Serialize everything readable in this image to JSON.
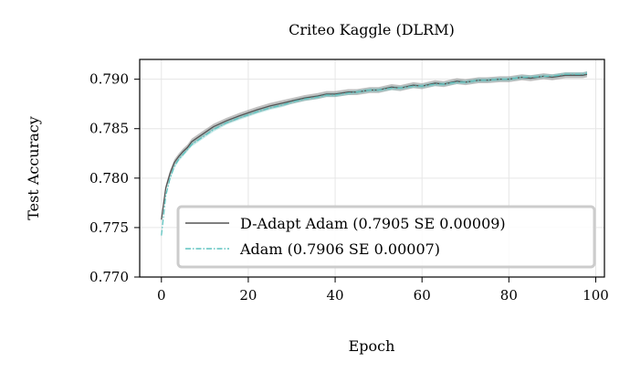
{
  "chart_data": {
    "type": "line",
    "title": "Criteo Kaggle (DLRM)",
    "xlabel": "Epoch",
    "ylabel": "Test Accuracy",
    "xlim": [
      -5,
      102
    ],
    "ylim": [
      0.77,
      0.792
    ],
    "xticks": [
      0,
      20,
      40,
      60,
      80,
      100
    ],
    "xtick_labels": [
      "0",
      "20",
      "40",
      "60",
      "80",
      "100"
    ],
    "yticks": [
      0.77,
      0.775,
      0.78,
      0.785,
      0.79
    ],
    "ytick_labels": [
      "0.770",
      "0.775",
      "0.780",
      "0.785",
      "0.790"
    ],
    "grid": true,
    "legend_position": "lower-right",
    "series": [
      {
        "name": "D-Adapt Adam (0.7905 SE 0.00009)",
        "color": "#555555",
        "band_color": "#8c8c8c",
        "style": "solid",
        "x": [
          0,
          1,
          2,
          3,
          4,
          5,
          6,
          7,
          8,
          10,
          12,
          15,
          18,
          20,
          22,
          25,
          28,
          30,
          33,
          36,
          38,
          40,
          43,
          45,
          48,
          50,
          53,
          55,
          58,
          60,
          63,
          65,
          68,
          70,
          73,
          75,
          78,
          80,
          83,
          85,
          88,
          90,
          93,
          95,
          97,
          98
        ],
        "y": [
          0.7758,
          0.779,
          0.7805,
          0.7816,
          0.7822,
          0.7827,
          0.7831,
          0.7837,
          0.784,
          0.7846,
          0.7852,
          0.7858,
          0.7863,
          0.7866,
          0.7869,
          0.7873,
          0.7876,
          0.7878,
          0.7881,
          0.7883,
          0.7885,
          0.7885,
          0.7887,
          0.7887,
          0.7889,
          0.7889,
          0.7892,
          0.7891,
          0.7894,
          0.7893,
          0.7896,
          0.7895,
          0.7898,
          0.7897,
          0.7899,
          0.7899,
          0.79,
          0.79,
          0.7902,
          0.7901,
          0.7903,
          0.7902,
          0.7904,
          0.7904,
          0.7904,
          0.7905
        ],
        "band_half_width": 0.0003
      },
      {
        "name": "Adam (0.7906 SE 0.00007)",
        "color": "#5fc4c0",
        "band_color": "#5fc4c0",
        "style": "dashdot",
        "x": [
          0,
          1,
          2,
          3,
          4,
          5,
          6,
          7,
          8,
          10,
          12,
          15,
          18,
          20,
          22,
          25,
          28,
          30,
          33,
          36,
          38,
          40,
          43,
          45,
          48,
          50,
          53,
          55,
          58,
          60,
          63,
          65,
          68,
          70,
          73,
          75,
          78,
          80,
          83,
          85,
          88,
          90,
          93,
          95,
          97,
          98
        ],
        "y": [
          0.7742,
          0.7782,
          0.78,
          0.7812,
          0.7819,
          0.7824,
          0.7829,
          0.7834,
          0.7837,
          0.7843,
          0.7849,
          0.7856,
          0.7861,
          0.7864,
          0.7867,
          0.7871,
          0.7874,
          0.7877,
          0.788,
          0.7882,
          0.7884,
          0.7884,
          0.7886,
          0.7887,
          0.7889,
          0.7889,
          0.7891,
          0.7891,
          0.7893,
          0.7893,
          0.7895,
          0.7895,
          0.7897,
          0.7897,
          0.7899,
          0.7899,
          0.79,
          0.79,
          0.7902,
          0.7902,
          0.7903,
          0.7903,
          0.7905,
          0.7905,
          0.7905,
          0.7906
        ],
        "band_half_width": 0.0002
      }
    ]
  }
}
